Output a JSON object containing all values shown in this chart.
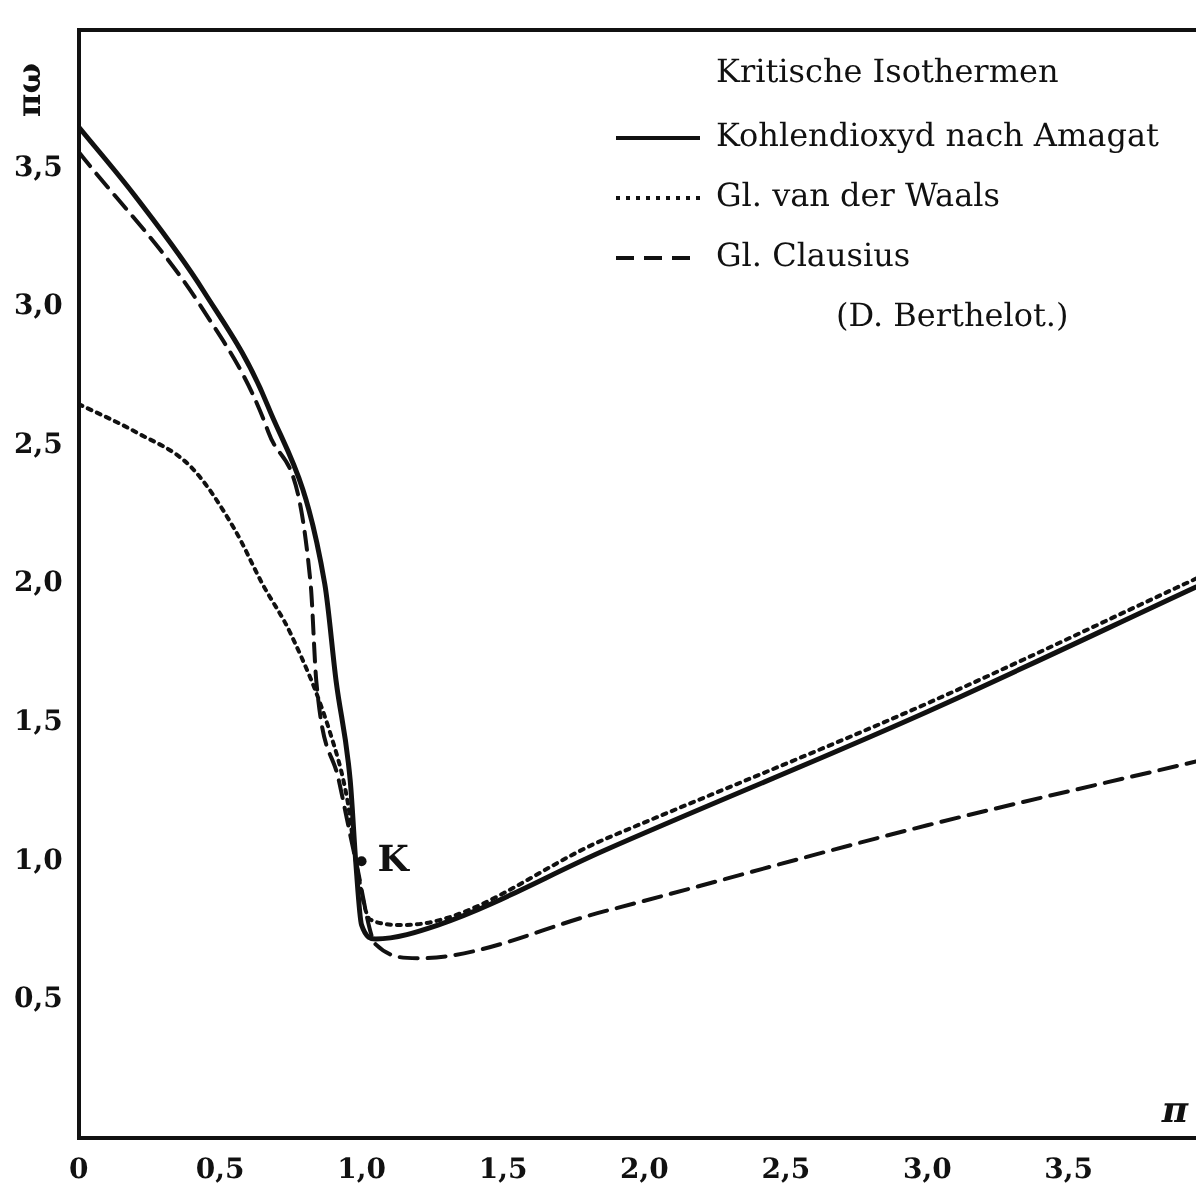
{
  "chart_data": {
    "type": "line",
    "xlabel": "π",
    "ylabel": "πω",
    "legend_title": "Kritische Isothermen",
    "legend": "top right",
    "marker": "none",
    "grid": false,
    "xlim": [
      0,
      3.95
    ],
    "ylim": [
      0,
      4
    ],
    "xticks": [
      0,
      {
        "value": 0.5,
        "label": "0,5"
      },
      {
        "value": 1,
        "label": "1,0"
      },
      {
        "value": 1.5,
        "label": "1,5"
      },
      {
        "value": 2,
        "label": "2,0"
      },
      {
        "value": 2.5,
        "label": "2,5"
      },
      {
        "value": 3,
        "label": "3,0"
      },
      {
        "value": 3.5,
        "label": "3,5"
      }
    ],
    "yticks": [
      {
        "value": 0.5,
        "label": "0,5"
      },
      {
        "value": 1,
        "label": "1,0"
      },
      {
        "value": 1.5,
        "label": "1,5"
      },
      {
        "value": 2,
        "label": "2,0"
      },
      {
        "value": 2.5,
        "label": "2,5"
      },
      {
        "value": 3,
        "label": "3,0"
      },
      {
        "value": 3.5,
        "label": "3,5"
      }
    ],
    "annotations": [
      {
        "text": "K",
        "x": 1.0,
        "y": 1.0
      },
      "(D. Berthelot.)"
    ],
    "series": [
      {
        "name": "Kohlendioxyd nach Amagat",
        "color": "#111111",
        "line_style": "solid",
        "x": [
          0,
          0.2,
          0.44,
          0.67,
          0.87,
          0.91,
          0.96,
          0.98,
          1.0,
          1.05,
          1.27,
          1.86,
          3.0,
          3.95
        ],
        "values": [
          3.65,
          3.4,
          3.06,
          2.64,
          2.0,
          1.65,
          1.29,
          0.99,
          0.77,
          0.72,
          0.77,
          1.04,
          1.54,
          1.99
        ]
      },
      {
        "name": "Gl. van der Waals",
        "color": "#111111",
        "line_style": "dotted",
        "x": [
          0,
          0.2,
          0.4,
          0.55,
          0.65,
          0.75,
          0.89,
          0.95,
          0.98,
          1.03,
          1.15,
          1.86,
          3.0,
          3.95
        ],
        "values": [
          2.65,
          2.55,
          2.42,
          2.2,
          2.0,
          1.82,
          1.46,
          1.22,
          1.0,
          0.79,
          0.77,
          1.08,
          1.57,
          2.02
        ]
      },
      {
        "name": "Gl. Clausius",
        "color": "#111111",
        "line_style": "dashed",
        "x": [
          0,
          0.44,
          0.67,
          0.82,
          0.84,
          0.92,
          0.98,
          1.05,
          1.2,
          1.86,
          3.0,
          3.95
        ],
        "values": [
          3.56,
          2.99,
          2.55,
          2.0,
          1.65,
          1.29,
          1.0,
          0.7,
          0.65,
          0.82,
          1.13,
          1.36
        ]
      }
    ]
  }
}
